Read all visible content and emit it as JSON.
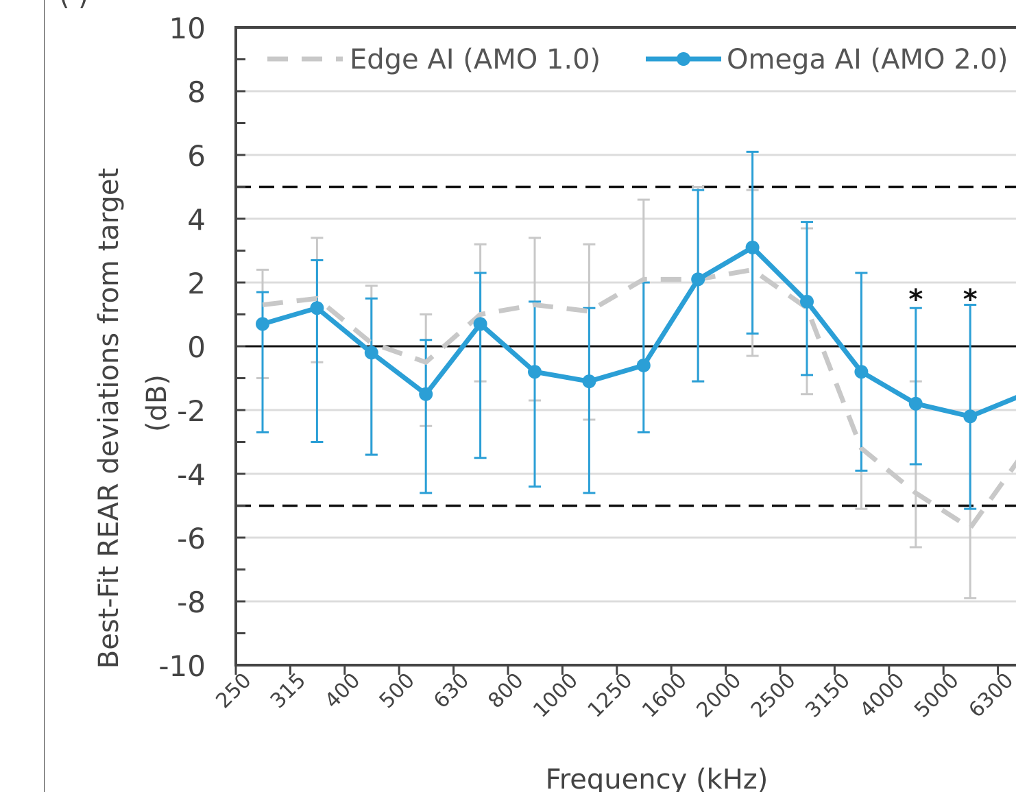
{
  "top_fragment": "(              )",
  "chart_data": {
    "type": "line",
    "title": "",
    "xlabel": "Frequency (kHz)",
    "ylabel": "Best-Fit REAR deviations from target\n(dB)",
    "ylabel_line1": "Best-Fit REAR deviations from target",
    "ylabel_line2": "(dB)",
    "ylim": [
      -10,
      10
    ],
    "yticks": [
      -10,
      -8,
      -6,
      -4,
      -2,
      0,
      2,
      4,
      6,
      8,
      10
    ],
    "grid": true,
    "legend_position": "top",
    "categories": [
      "250",
      "315",
      "400",
      "500",
      "630",
      "800",
      "1000",
      "1250",
      "1600",
      "2000",
      "2500",
      "3150",
      "4000",
      "5000",
      "6300"
    ],
    "reference_lines": [
      5,
      -5
    ],
    "significance_markers": [
      {
        "category": "4000",
        "label": "*"
      },
      {
        "category": "5000",
        "label": "*"
      }
    ],
    "series": [
      {
        "name": "Edge AI (AMO 1.0)",
        "style": "dashed",
        "color": "#c8c8c8",
        "values": [
          1.3,
          1.5,
          0.1,
          -0.5,
          1.0,
          1.3,
          1.1,
          2.1,
          2.1,
          2.4,
          1.2,
          -3.2,
          -4.6,
          -5.7,
          -3.3
        ],
        "err_low": [
          -1.0,
          -0.5,
          -3.4,
          -2.5,
          -1.1,
          -1.7,
          -2.3,
          -0.5,
          -1.1,
          -0.3,
          -1.5,
          -5.1,
          -6.3,
          -7.9,
          null
        ],
        "err_high": [
          2.4,
          3.4,
          1.9,
          1.0,
          3.2,
          3.4,
          3.2,
          4.6,
          5.0,
          4.9,
          3.7,
          2.3,
          -1.1,
          -2.2,
          null
        ]
      },
      {
        "name": "Omega AI (AMO 2.0)",
        "style": "solid-marker",
        "color": "#2b9fd6",
        "values": [
          0.7,
          1.2,
          -0.2,
          -1.5,
          0.7,
          -0.8,
          -1.1,
          -0.6,
          2.1,
          3.1,
          1.4,
          -0.8,
          -1.8,
          -2.2,
          -1.5
        ],
        "err_low": [
          -2.7,
          -3.0,
          -3.4,
          -4.6,
          -3.5,
          -4.4,
          -4.6,
          -2.7,
          -1.1,
          0.4,
          -0.9,
          -3.9,
          -3.7,
          -5.1,
          null
        ],
        "err_high": [
          1.7,
          2.7,
          1.5,
          0.2,
          2.3,
          1.4,
          1.2,
          2.0,
          4.9,
          6.1,
          3.9,
          2.3,
          1.2,
          1.3,
          null
        ]
      }
    ]
  }
}
